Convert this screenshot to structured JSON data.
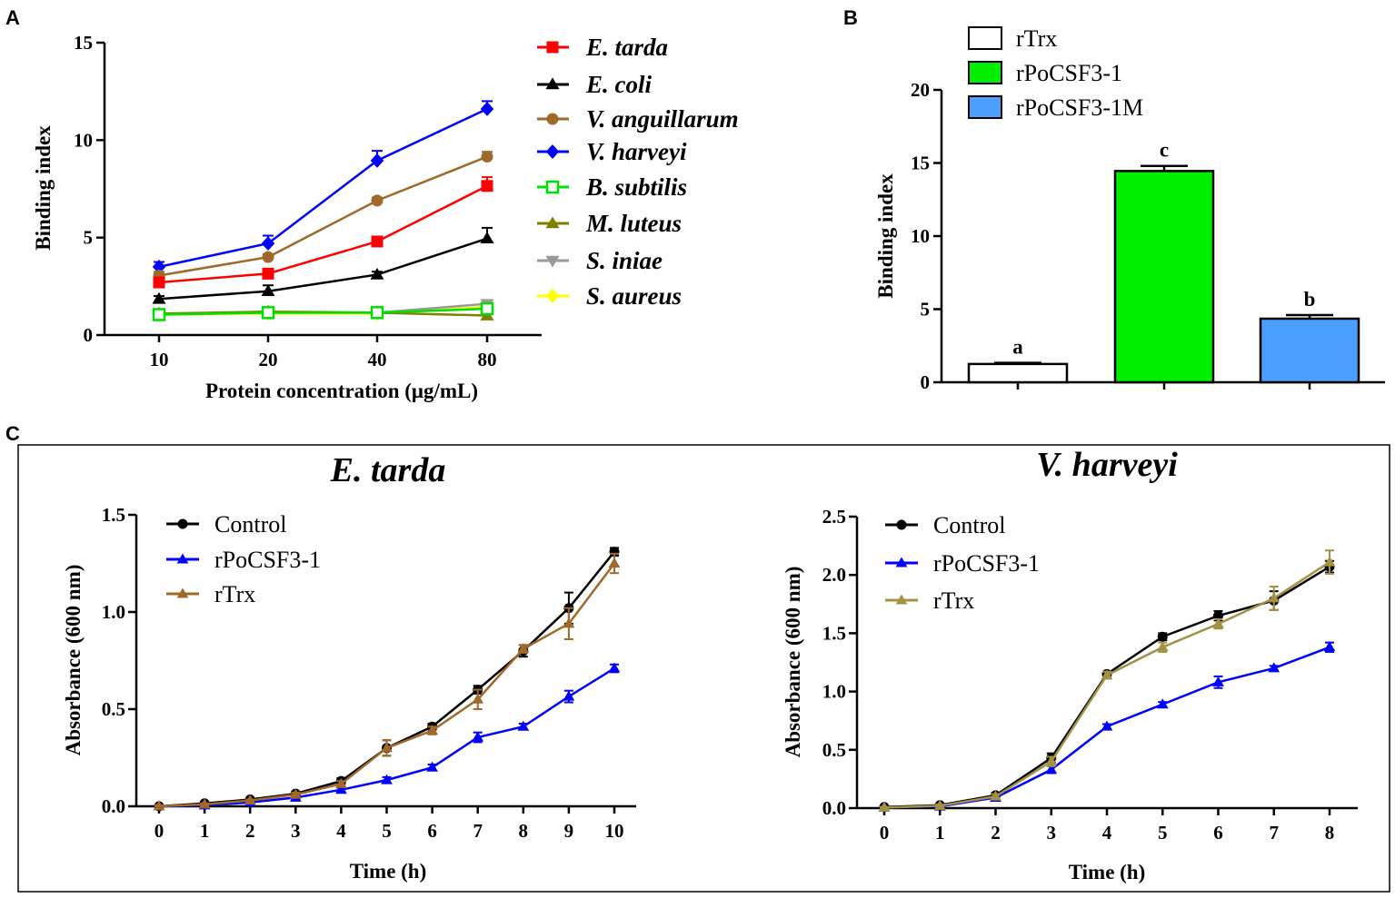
{
  "panels": {
    "a": "A",
    "b": "B",
    "c": "C"
  },
  "chart_data": [
    {
      "id": "A",
      "type": "line",
      "title": "",
      "xlabel": "Protein concentration (μg/mL)",
      "ylabel": "Binding index",
      "categories": [
        "10",
        "20",
        "40",
        "80"
      ],
      "ylim": [
        0,
        15
      ],
      "yticks": [
        0,
        5,
        10,
        15
      ],
      "series": [
        {
          "name": "E. tarda",
          "color": "#ff0000",
          "marker": "square",
          "values": [
            2.7,
            3.15,
            4.8,
            7.65
          ],
          "errors": [
            0.2,
            0.2,
            0.25,
            0.45
          ]
        },
        {
          "name": "E. coli",
          "color": "#000000",
          "marker": "triangle",
          "values": [
            1.85,
            2.25,
            3.1,
            4.95
          ],
          "errors": [
            0.15,
            0.3,
            0.15,
            0.55
          ]
        },
        {
          "name": "V. anguillarum",
          "color": "#a0692a",
          "marker": "circle",
          "values": [
            3.05,
            4.0,
            6.9,
            9.15
          ],
          "errors": [
            0.2,
            0.15,
            0.15,
            0.25
          ]
        },
        {
          "name": "V. harveyi",
          "color": "#0000ff",
          "marker": "diamond",
          "values": [
            3.5,
            4.7,
            8.95,
            11.6
          ],
          "errors": [
            0.25,
            0.4,
            0.5,
            0.4
          ]
        },
        {
          "name": "B. subtilis",
          "color": "#00e000",
          "marker": "open-square",
          "values": [
            1.05,
            1.15,
            1.15,
            1.35
          ],
          "errors": [
            0.1,
            0.1,
            0.1,
            0.1
          ]
        },
        {
          "name": "M. luteus",
          "color": "#7f7f00",
          "marker": "triangle",
          "values": [
            1.1,
            1.2,
            1.15,
            1.0
          ],
          "errors": [
            0.1,
            0.1,
            0.1,
            0.1
          ]
        },
        {
          "name": "S. iniae",
          "color": "#999999",
          "marker": "down-triangle",
          "values": [
            1.05,
            1.15,
            1.15,
            1.6
          ],
          "errors": [
            0.1,
            0.1,
            0.1,
            0.1
          ]
        },
        {
          "name": "S. aureus",
          "color": "#ffff00",
          "marker": "diamond",
          "values": [
            1.05,
            1.1,
            1.1,
            1.45
          ],
          "errors": [
            0.1,
            0.1,
            0.1,
            0.1
          ]
        }
      ]
    },
    {
      "id": "B",
      "type": "bar",
      "title": "",
      "xlabel": "",
      "ylabel": "Binding index",
      "categories": [
        "rTrx",
        "rPoCSF3-1",
        "rPoCSF3-1M"
      ],
      "values": [
        1.25,
        14.45,
        4.35
      ],
      "errors": [
        0.08,
        0.35,
        0.25
      ],
      "colors": [
        "#ffffff",
        "#00ee00",
        "#4d9fff"
      ],
      "labels": [
        "a",
        "c",
        "b"
      ],
      "ylim": [
        0,
        20
      ],
      "yticks": [
        0,
        5,
        10,
        15,
        20
      ]
    },
    {
      "id": "C1",
      "type": "line",
      "title": "E. tarda",
      "xlabel": "Time (h)",
      "ylabel": "Absorbance (600 nm)",
      "x": [
        0,
        1,
        2,
        3,
        4,
        5,
        6,
        7,
        8,
        9,
        10
      ],
      "ylim": [
        0,
        1.5
      ],
      "yticks": [
        0.0,
        0.5,
        1.0,
        1.5
      ],
      "ytick_labels": [
        "0.0",
        "0.5",
        "1.0",
        "1.5"
      ],
      "series": [
        {
          "name": "Control",
          "color": "#000000",
          "marker": "circle",
          "values": [
            0.0,
            0.015,
            0.035,
            0.065,
            0.13,
            0.3,
            0.41,
            0.6,
            0.8,
            1.02,
            1.31
          ],
          "errors": [
            0.005,
            0.005,
            0.005,
            0.01,
            0.015,
            0.04,
            0.015,
            0.02,
            0.03,
            0.08,
            0.02
          ]
        },
        {
          "name": "rPoCSF3-1",
          "color": "#0000ff",
          "marker": "triangle",
          "values": [
            0.0,
            0.005,
            0.02,
            0.045,
            0.085,
            0.135,
            0.2,
            0.355,
            0.41,
            0.565,
            0.71
          ],
          "errors": [
            0.005,
            0.005,
            0.005,
            0.005,
            0.01,
            0.015,
            0.015,
            0.025,
            0.015,
            0.03,
            0.02
          ]
        },
        {
          "name": "rTrx",
          "color": "#a0692a",
          "marker": "triangle",
          "values": [
            0.0,
            0.01,
            0.03,
            0.06,
            0.115,
            0.3,
            0.39,
            0.55,
            0.81,
            0.94,
            1.25
          ],
          "errors": [
            0.005,
            0.005,
            0.005,
            0.01,
            0.015,
            0.04,
            0.02,
            0.05,
            0.02,
            0.08,
            0.05
          ]
        }
      ]
    },
    {
      "id": "C2",
      "type": "line",
      "title": "V. harveyi",
      "xlabel": "Time (h)",
      "ylabel": "Absorbance (600 nm)",
      "x": [
        0,
        1,
        2,
        3,
        4,
        5,
        6,
        7,
        8
      ],
      "ylim": [
        0,
        2.5
      ],
      "yticks": [
        0.0,
        0.5,
        1.0,
        1.5,
        2.0,
        2.5
      ],
      "ytick_labels": [
        "0.0",
        "0.5",
        "1.0",
        "1.5",
        "2.0",
        "2.5"
      ],
      "series": [
        {
          "name": "Control",
          "color": "#000000",
          "marker": "circle",
          "values": [
            0.01,
            0.025,
            0.11,
            0.43,
            1.15,
            1.47,
            1.65,
            1.78,
            2.07
          ],
          "errors": [
            0.005,
            0.01,
            0.02,
            0.04,
            0.02,
            0.03,
            0.04,
            0.08,
            0.05
          ]
        },
        {
          "name": "rPoCSF3-1",
          "color": "#0000ff",
          "marker": "triangle",
          "values": [
            0.005,
            0.015,
            0.09,
            0.33,
            0.7,
            0.89,
            1.08,
            1.2,
            1.38
          ],
          "errors": [
            0.005,
            0.01,
            0.01,
            0.03,
            0.02,
            0.02,
            0.05,
            0.02,
            0.04
          ]
        },
        {
          "name": "rTrx",
          "color": "#a39244",
          "marker": "triangle",
          "values": [
            0.005,
            0.02,
            0.1,
            0.4,
            1.14,
            1.38,
            1.58,
            1.8,
            2.11
          ],
          "errors": [
            0.005,
            0.01,
            0.02,
            0.04,
            0.03,
            0.04,
            0.04,
            0.1,
            0.1
          ]
        }
      ]
    }
  ]
}
